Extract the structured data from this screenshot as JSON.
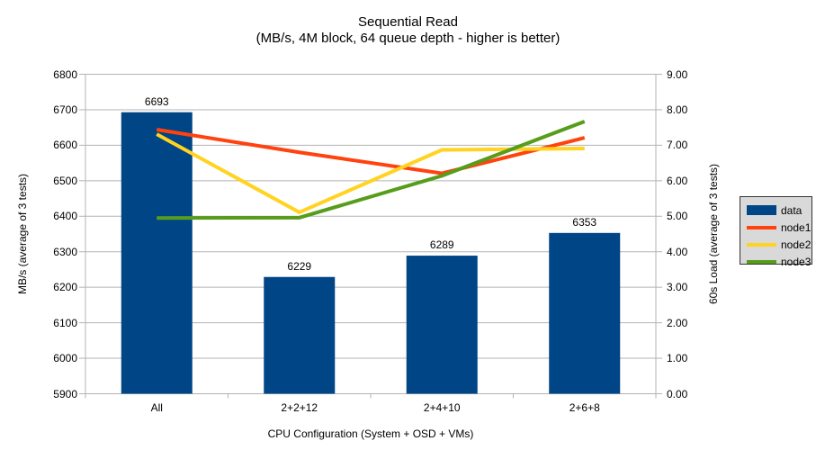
{
  "title": "Sequential Read",
  "subtitle": "(MB/s, 4M block, 64 queue depth - higher is better)",
  "colors": {
    "bar_blue": "#004586",
    "node1_red": "#ff420e",
    "node2_yellow": "#ffd320",
    "node3_green": "#579d1c",
    "gridline": "#b3b3b3",
    "axis_line": "#b3b3b3",
    "legend_bg": "#d9d9d9",
    "legend_border": "#333333",
    "text": "#000000"
  },
  "chart_data": {
    "type": "bar",
    "subtype": "bar+line combo, dual axis",
    "categories": [
      "All",
      "2+2+12",
      "2+4+10",
      "2+6+8"
    ],
    "bar_series": {
      "name": "data",
      "axis": "left",
      "values": [
        6693,
        6229,
        6289,
        6353
      ],
      "data_labels": [
        "6693",
        "6229",
        "6289",
        "6353"
      ],
      "color": "#004586"
    },
    "line_series": [
      {
        "name": "node1",
        "axis": "right",
        "values": [
          7.44,
          6.8,
          6.21,
          7.21
        ],
        "color": "#ff420e"
      },
      {
        "name": "node2",
        "axis": "right",
        "values": [
          7.31,
          5.11,
          6.87,
          6.91
        ],
        "color": "#ffd320"
      },
      {
        "name": "node3",
        "axis": "right",
        "values": [
          4.95,
          4.96,
          6.14,
          7.67
        ],
        "color": "#579d1c"
      }
    ],
    "left_axis": {
      "label": "MB/s (average of 3 tests)",
      "min": 5900,
      "max": 6800,
      "step": 100,
      "decimals": 0
    },
    "right_axis": {
      "label": "60s Load (average of 3 tests)",
      "min": 0,
      "max": 9,
      "step": 1,
      "decimals": 2
    },
    "x_axis": {
      "label": "CPU Configuration (System + OSD + VMs)"
    },
    "grid": "horizontal",
    "legend": {
      "position": "right",
      "items": [
        {
          "label": "data",
          "swatch": "rect"
        },
        {
          "label": "node1",
          "swatch": "line"
        },
        {
          "label": "node2",
          "swatch": "line"
        },
        {
          "label": "node3",
          "swatch": "line"
        }
      ]
    }
  }
}
